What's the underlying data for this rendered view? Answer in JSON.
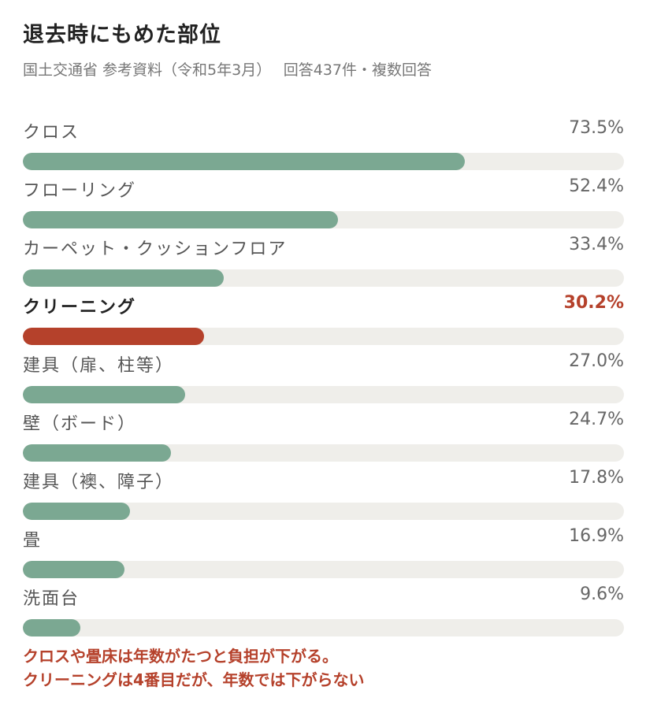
{
  "title": "退去時にもめた部位",
  "subtitle": "国土交通省 参考資料（令和5年3月）　 回答437件・複数回答",
  "chart_data": {
    "type": "bar",
    "orientation": "horizontal",
    "xlim": [
      0,
      100
    ],
    "unit": "%",
    "categories": [
      "クロス",
      "フローリング",
      "カーペット・クッションフロア",
      "クリーニング",
      "建具（扉、柱等）",
      "壁（ボード）",
      "建具（襖、障子）",
      "畳",
      "洗面台"
    ],
    "values": [
      73.5,
      52.4,
      33.4,
      30.2,
      27.0,
      24.7,
      17.8,
      16.9,
      9.6
    ],
    "value_labels": [
      "73.5%",
      "52.4%",
      "33.4%",
      "30.2%",
      "27.0%",
      "24.7%",
      "17.8%",
      "16.9%",
      "9.6%"
    ],
    "highlight": "クリーニング",
    "colors": {
      "bar": "#7ba892",
      "highlight": "#b5412b",
      "track": "#efeeea"
    }
  },
  "note": {
    "line1": "クロスや畳床は年数がたつと負担が下がる。",
    "line2": "クリーニングは4番目だが、年数では下がらない"
  }
}
